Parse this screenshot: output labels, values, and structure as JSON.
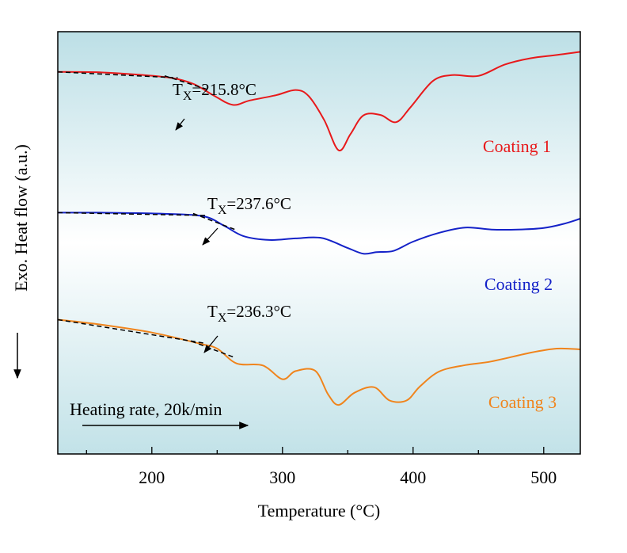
{
  "chart_data": {
    "type": "line",
    "xlabel": "Temperature (°C)",
    "ylabel": "Exo. Heat flow (a.u.)",
    "xlim": [
      128,
      528
    ],
    "x_ticks": [
      200,
      300,
      400,
      500
    ],
    "y_ticks_shown": false,
    "background": "gradient light blue to white to light blue",
    "series": [
      {
        "name": "Coating 1",
        "color": "#e8191b",
        "x": [
          128,
          160,
          190,
          215,
          232,
          247,
          262,
          275,
          295,
          310,
          320,
          332,
          343,
          352,
          362,
          375,
          387,
          398,
          415,
          430,
          450,
          470,
          490,
          510,
          528
        ],
        "y": [
          9.5,
          9.49,
          9.43,
          9.35,
          9.2,
          8.92,
          8.68,
          8.79,
          8.92,
          9.05,
          8.9,
          8.3,
          7.55,
          7.95,
          8.42,
          8.43,
          8.25,
          8.62,
          9.27,
          9.42,
          9.4,
          9.68,
          9.84,
          9.92,
          10.0
        ],
        "annotation": "T_X=215.8°C",
        "onset_x": 215.8
      },
      {
        "name": "Coating 2",
        "color": "#1422c8",
        "x": [
          128,
          160,
          200,
          238,
          255,
          270,
          290,
          310,
          330,
          350,
          362,
          372,
          385,
          400,
          420,
          440,
          460,
          480,
          500,
          515,
          528
        ],
        "y": [
          6.0,
          6.0,
          5.98,
          5.92,
          5.68,
          5.42,
          5.32,
          5.36,
          5.37,
          5.12,
          4.98,
          5.02,
          5.05,
          5.28,
          5.5,
          5.63,
          5.58,
          5.58,
          5.62,
          5.72,
          5.85
        ]
      },
      {
        "name": "Coating 3",
        "color": "#f0841c",
        "x": [
          128,
          160,
          200,
          237,
          250,
          265,
          285,
          300,
          310,
          325,
          335,
          343,
          355,
          370,
          382,
          395,
          405,
          420,
          440,
          460,
          490,
          510,
          528
        ],
        "y": [
          3.34,
          3.22,
          3.02,
          2.74,
          2.62,
          2.25,
          2.2,
          1.86,
          2.06,
          2.07,
          1.48,
          1.22,
          1.52,
          1.66,
          1.33,
          1.33,
          1.67,
          2.05,
          2.21,
          2.3,
          2.52,
          2.62,
          2.6
        ]
      }
    ],
    "onset_annotations": [
      {
        "series": "Coating 1",
        "prefix": "T",
        "subscript": "X",
        "value": "=215.8°C",
        "x": 215.8
      },
      {
        "series": "Coating 2",
        "prefix": "T",
        "subscript": "X",
        "value": "=237.6°C",
        "x": 237.6
      },
      {
        "series": "Coating 3",
        "prefix": "T",
        "subscript": "X",
        "value": "=236.3°C",
        "x": 236.3
      }
    ],
    "heating_rate_label": "Heating rate, 20k/min"
  }
}
